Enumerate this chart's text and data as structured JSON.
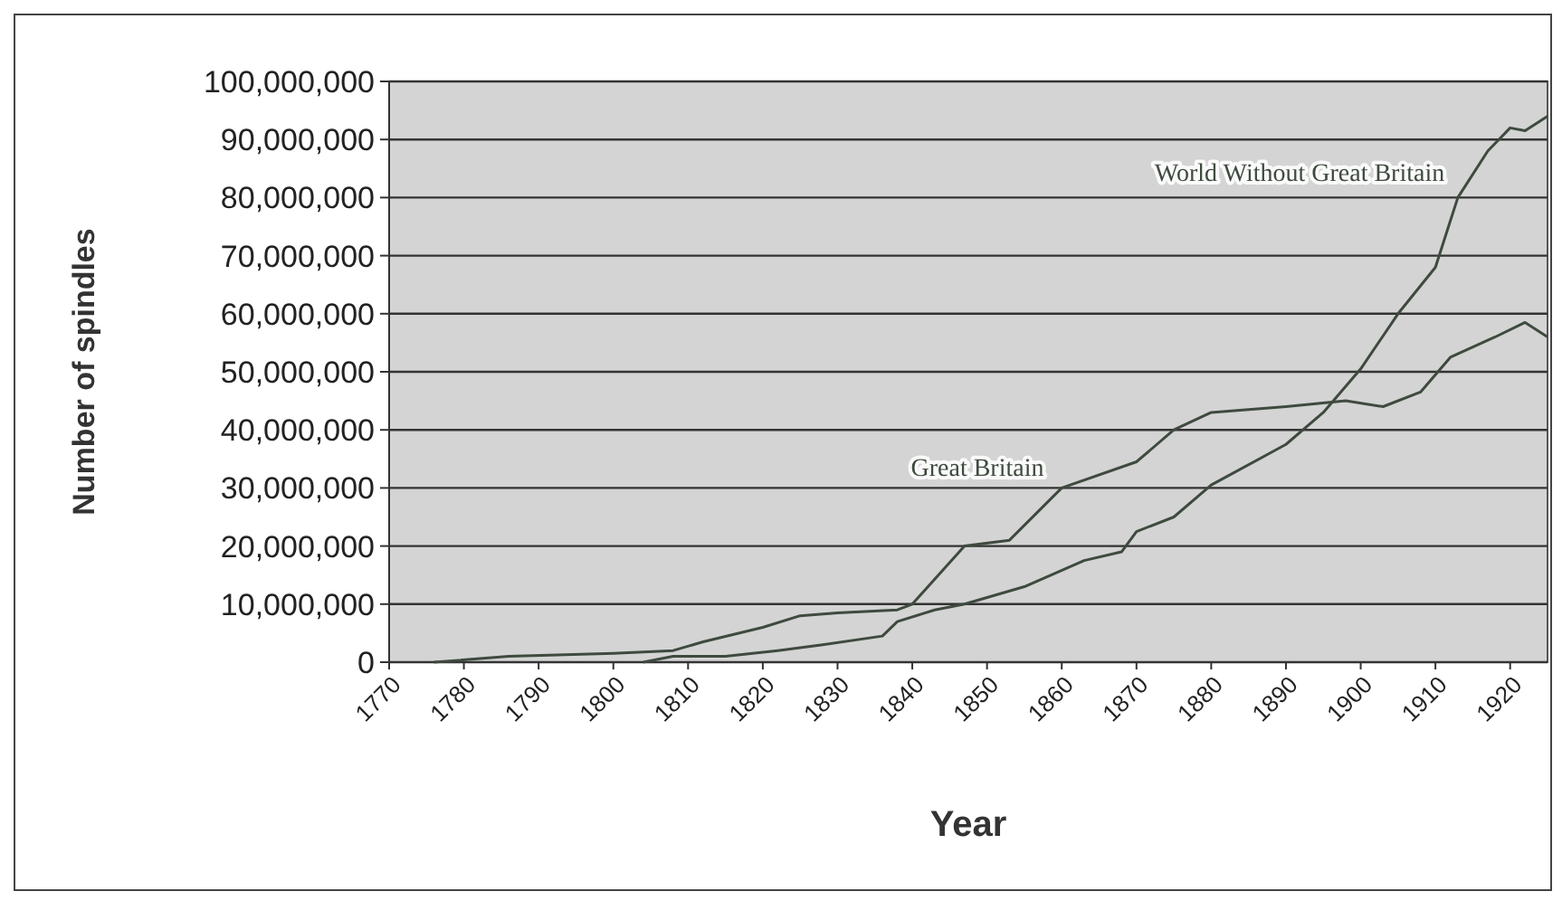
{
  "chart_data": {
    "type": "line",
    "xlabel": "Year",
    "ylabel": "Number of spindles",
    "xlim": [
      1770,
      1925
    ],
    "xticks": [
      1770,
      1780,
      1790,
      1800,
      1810,
      1820,
      1830,
      1840,
      1850,
      1860,
      1870,
      1880,
      1890,
      1900,
      1910,
      1920
    ],
    "ylim": [
      0,
      100000000
    ],
    "yticks": [
      {
        "value": 0,
        "label": "0"
      },
      {
        "value": 10000000,
        "label": "10,000,000"
      },
      {
        "value": 20000000,
        "label": "20,000,000"
      },
      {
        "value": 30000000,
        "label": "30,000,000"
      },
      {
        "value": 40000000,
        "label": "40,000,000"
      },
      {
        "value": 50000000,
        "label": "50,000,000"
      },
      {
        "value": 60000000,
        "label": "60,000,000"
      },
      {
        "value": 70000000,
        "label": "70,000,000"
      },
      {
        "value": 80000000,
        "label": "80,000,000"
      },
      {
        "value": 90000000,
        "label": "90,000,000"
      },
      {
        "value": 100000000,
        "label": "100,000,000"
      }
    ],
    "grid": "y",
    "marker": "none",
    "line_style": "solid",
    "series": [
      {
        "name": "Great Britain",
        "color": "#3f4a3f",
        "x": [
          1776,
          1786,
          1800,
          1808,
          1812,
          1820,
          1825,
          1830,
          1838,
          1840,
          1847,
          1853,
          1860,
          1870,
          1875,
          1880,
          1890,
          1898,
          1903,
          1908,
          1912,
          1918,
          1922,
          1925
        ],
        "values": [
          0,
          1000000,
          1500000,
          2000000,
          3500000,
          6000000,
          8000000,
          8500000,
          9000000,
          10000000,
          20000000,
          21000000,
          30000000,
          34500000,
          40000000,
          43000000,
          44000000,
          45000000,
          44000000,
          46500000,
          52500000,
          56000000,
          58500000,
          56000000
        ]
      },
      {
        "name": "World Without Great Britain",
        "color": "#3f4a3f",
        "x": [
          1804,
          1808,
          1815,
          1822,
          1828,
          1836,
          1838,
          1843,
          1847,
          1855,
          1863,
          1868,
          1870,
          1875,
          1880,
          1890,
          1895,
          1900,
          1905,
          1910,
          1913,
          1917,
          1920,
          1922,
          1925
        ],
        "values": [
          0,
          1000000,
          1000000,
          2000000,
          3000000,
          4500000,
          7000000,
          9000000,
          10000000,
          13000000,
          17500000,
          19000000,
          22500000,
          25000000,
          30500000,
          37500000,
          43000000,
          50500000,
          60000000,
          68000000,
          80000000,
          88000000,
          92000000,
          91500000,
          94000000
        ]
      }
    ]
  }
}
